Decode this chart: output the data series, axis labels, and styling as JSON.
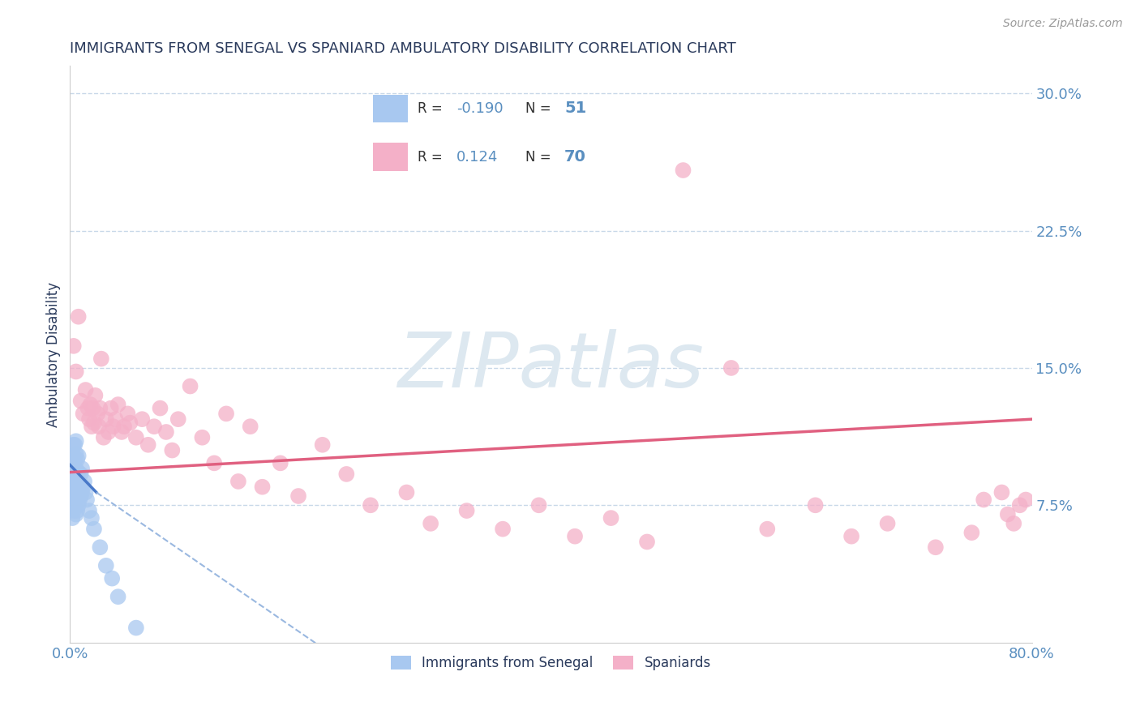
{
  "title": "IMMIGRANTS FROM SENEGAL VS SPANIARD AMBULATORY DISABILITY CORRELATION CHART",
  "source_text": "Source: ZipAtlas.com",
  "ylabel": "Ambulatory Disability",
  "xlim": [
    0.0,
    0.8
  ],
  "ylim": [
    0.0,
    0.315
  ],
  "blue_r": -0.19,
  "blue_n": 51,
  "pink_r": 0.124,
  "pink_n": 70,
  "blue_color": "#a8c8f0",
  "pink_color": "#f4b0c8",
  "blue_line_color": "#4878c8",
  "blue_dash_color": "#9ab8e0",
  "pink_line_color": "#e06080",
  "title_color": "#2a3a5c",
  "axis_color": "#5a8fc0",
  "grid_color": "#c8d8e8",
  "watermark_color": "#dde8f0",
  "legend_border_color": "#d0d8e0",
  "blue_scatter_x": [
    0.001,
    0.001,
    0.001,
    0.002,
    0.002,
    0.002,
    0.002,
    0.002,
    0.003,
    0.003,
    0.003,
    0.003,
    0.003,
    0.003,
    0.004,
    0.004,
    0.004,
    0.004,
    0.004,
    0.005,
    0.005,
    0.005,
    0.005,
    0.005,
    0.005,
    0.006,
    0.006,
    0.006,
    0.006,
    0.007,
    0.007,
    0.007,
    0.007,
    0.008,
    0.008,
    0.009,
    0.009,
    0.01,
    0.01,
    0.011,
    0.012,
    0.013,
    0.014,
    0.016,
    0.018,
    0.02,
    0.025,
    0.03,
    0.035,
    0.04,
    0.055
  ],
  "blue_scatter_y": [
    0.075,
    0.082,
    0.09,
    0.068,
    0.078,
    0.085,
    0.092,
    0.098,
    0.072,
    0.08,
    0.088,
    0.095,
    0.102,
    0.108,
    0.075,
    0.083,
    0.092,
    0.1,
    0.108,
    0.07,
    0.078,
    0.088,
    0.095,
    0.103,
    0.11,
    0.072,
    0.082,
    0.092,
    0.1,
    0.075,
    0.085,
    0.093,
    0.102,
    0.078,
    0.088,
    0.08,
    0.092,
    0.082,
    0.095,
    0.085,
    0.088,
    0.082,
    0.078,
    0.072,
    0.068,
    0.062,
    0.052,
    0.042,
    0.035,
    0.025,
    0.008
  ],
  "pink_scatter_x": [
    0.003,
    0.005,
    0.007,
    0.009,
    0.011,
    0.013,
    0.015,
    0.016,
    0.017,
    0.018,
    0.019,
    0.02,
    0.021,
    0.023,
    0.024,
    0.025,
    0.026,
    0.028,
    0.03,
    0.032,
    0.034,
    0.036,
    0.038,
    0.04,
    0.043,
    0.045,
    0.048,
    0.05,
    0.055,
    0.06,
    0.065,
    0.07,
    0.075,
    0.08,
    0.085,
    0.09,
    0.1,
    0.11,
    0.12,
    0.13,
    0.14,
    0.15,
    0.16,
    0.175,
    0.19,
    0.21,
    0.23,
    0.25,
    0.28,
    0.3,
    0.33,
    0.36,
    0.39,
    0.42,
    0.45,
    0.48,
    0.51,
    0.55,
    0.58,
    0.62,
    0.65,
    0.68,
    0.72,
    0.75,
    0.76,
    0.775,
    0.78,
    0.785,
    0.79,
    0.795
  ],
  "pink_scatter_y": [
    0.162,
    0.148,
    0.178,
    0.132,
    0.125,
    0.138,
    0.128,
    0.122,
    0.13,
    0.118,
    0.128,
    0.12,
    0.135,
    0.125,
    0.118,
    0.128,
    0.155,
    0.112,
    0.122,
    0.115,
    0.128,
    0.118,
    0.122,
    0.13,
    0.115,
    0.118,
    0.125,
    0.12,
    0.112,
    0.122,
    0.108,
    0.118,
    0.128,
    0.115,
    0.105,
    0.122,
    0.14,
    0.112,
    0.098,
    0.125,
    0.088,
    0.118,
    0.085,
    0.098,
    0.08,
    0.108,
    0.092,
    0.075,
    0.082,
    0.065,
    0.072,
    0.062,
    0.075,
    0.058,
    0.068,
    0.055,
    0.258,
    0.15,
    0.062,
    0.075,
    0.058,
    0.065,
    0.052,
    0.06,
    0.078,
    0.082,
    0.07,
    0.065,
    0.075,
    0.078
  ]
}
